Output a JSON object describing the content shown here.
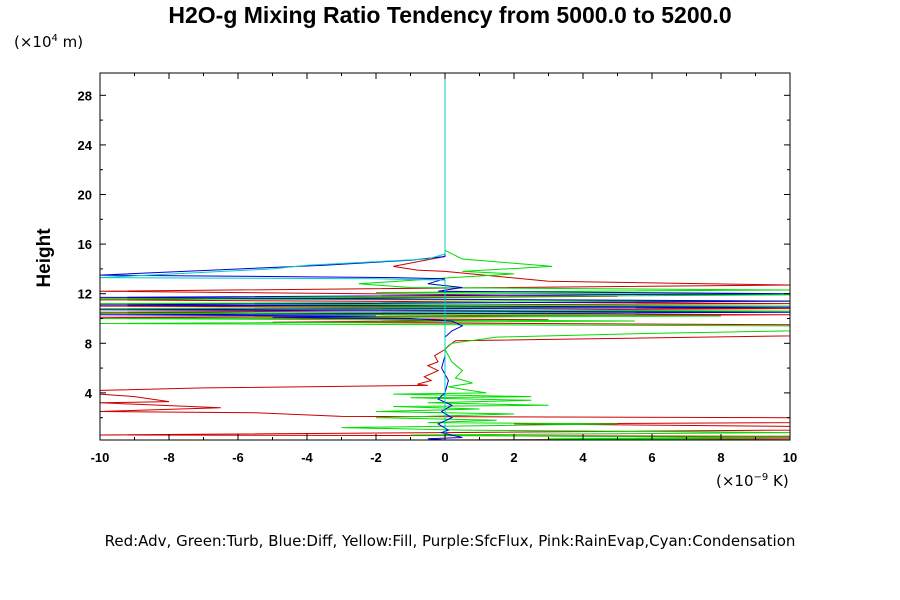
{
  "chart_data": {
    "type": "line",
    "title": "H2O-g Mixing Ratio Tendency from 5000.0 to 5200.0",
    "ylabel": "Height",
    "y_unit": {
      "prefix": "(×10",
      "exponent": "4",
      "suffix": " m)"
    },
    "x_unit": {
      "prefix": "(×10",
      "exponent": "−9",
      "suffix": " K)"
    },
    "xlim": [
      -10,
      10
    ],
    "ylim": [
      0.2,
      29.8
    ],
    "x_ticks": [
      -10,
      -8,
      -6,
      -4,
      -2,
      0,
      2,
      4,
      6,
      8,
      10
    ],
    "y_ticks": [
      4,
      8,
      12,
      16,
      20,
      24,
      28
    ],
    "legend": "Red:Adv, Green:Turb, Blue:Diff, Yellow:Fill, Purple:SfcFlux, Pink:RainEvap,Cyan:Condensation",
    "grid": false,
    "series": [
      {
        "name": "Adv",
        "color": "#cc0000",
        "points": [
          [
            0,
            29.8
          ],
          [
            0,
            16
          ],
          [
            0,
            15.0
          ],
          [
            -1.5,
            14.2
          ],
          [
            -0.8,
            13.9
          ],
          [
            0,
            13.8
          ],
          [
            3.0,
            13.0
          ],
          [
            10,
            12.7
          ],
          [
            -10,
            12.2
          ],
          [
            5.0,
            11.8
          ],
          [
            -10,
            11.5
          ],
          [
            10,
            11.2
          ],
          [
            -10,
            11.0
          ],
          [
            10,
            10.8
          ],
          [
            -10,
            10.5
          ],
          [
            10,
            10.3
          ],
          [
            -10,
            10.1
          ],
          [
            3.0,
            9.9
          ],
          [
            -5.0,
            9.7
          ],
          [
            10,
            9.5
          ],
          [
            10,
            8.6
          ],
          [
            0.3,
            8.2
          ],
          [
            0.1,
            7.8
          ],
          [
            0,
            7.5
          ],
          [
            -0.3,
            7.0
          ],
          [
            -0.2,
            6.5
          ],
          [
            -0.5,
            6.2
          ],
          [
            -0.2,
            5.8
          ],
          [
            -0.6,
            5.3
          ],
          [
            -0.4,
            5.0
          ],
          [
            -0.8,
            4.7
          ],
          [
            -0.5,
            4.6
          ],
          [
            -7.0,
            4.4
          ],
          [
            -10,
            4.2
          ],
          [
            -10,
            3.9
          ],
          [
            -9.0,
            3.7
          ],
          [
            -8.0,
            3.3
          ],
          [
            -10,
            3.2
          ],
          [
            -6.5,
            2.8
          ],
          [
            -10,
            2.5
          ],
          [
            -5.5,
            2.4
          ],
          [
            -3.0,
            2.1
          ],
          [
            10,
            2.0
          ],
          [
            10,
            1.6
          ],
          [
            2.0,
            1.5
          ],
          [
            10,
            1.3
          ],
          [
            10,
            1.0
          ],
          [
            0,
            0.8
          ],
          [
            -10,
            0.6
          ],
          [
            10,
            0.5
          ],
          [
            10,
            0.3
          ],
          [
            0,
            0.2
          ]
        ]
      },
      {
        "name": "Turb",
        "color": "#00dd00",
        "points": [
          [
            0,
            29.8
          ],
          [
            0,
            15.5
          ],
          [
            0.5,
            14.8
          ],
          [
            3.1,
            14.2
          ],
          [
            0.5,
            13.8
          ],
          [
            2.0,
            13.6
          ],
          [
            0.2,
            13.3
          ],
          [
            -2.5,
            12.8
          ],
          [
            -1.0,
            12.5
          ],
          [
            10,
            12.3
          ],
          [
            -2.0,
            12.1
          ],
          [
            10,
            11.9
          ],
          [
            -10,
            11.6
          ],
          [
            10,
            11.4
          ],
          [
            -10,
            11.2
          ],
          [
            10,
            11.0
          ],
          [
            -10,
            10.8
          ],
          [
            10,
            10.6
          ],
          [
            -10,
            10.4
          ],
          [
            8.0,
            10.2
          ],
          [
            -10,
            10.0
          ],
          [
            5.5,
            9.8
          ],
          [
            -10,
            9.6
          ],
          [
            10,
            9.4
          ],
          [
            10,
            9.0
          ],
          [
            6.0,
            8.8
          ],
          [
            1.5,
            8.5
          ],
          [
            0.2,
            8.0
          ],
          [
            0,
            7.5
          ],
          [
            0.2,
            6.5
          ],
          [
            0.5,
            5.8
          ],
          [
            0.3,
            5.2
          ],
          [
            0.8,
            4.8
          ],
          [
            0.1,
            4.5
          ],
          [
            0.5,
            4.3
          ],
          [
            1.2,
            4.0
          ],
          [
            -1.5,
            3.9
          ],
          [
            2.5,
            3.7
          ],
          [
            -1.0,
            3.6
          ],
          [
            2.5,
            3.4
          ],
          [
            -0.5,
            3.2
          ],
          [
            3.0,
            3.0
          ],
          [
            -1.5,
            2.9
          ],
          [
            1.0,
            2.7
          ],
          [
            -2.0,
            2.5
          ],
          [
            2.0,
            2.3
          ],
          [
            -2.0,
            2.0
          ],
          [
            1.5,
            1.8
          ],
          [
            -0.5,
            1.6
          ],
          [
            5.0,
            1.5
          ],
          [
            -3.0,
            1.2
          ],
          [
            0.5,
            1.0
          ],
          [
            10,
            0.8
          ],
          [
            -1.0,
            0.6
          ],
          [
            3.0,
            0.5
          ],
          [
            10,
            0.4
          ],
          [
            3.0,
            0.3
          ],
          [
            10,
            0.2
          ]
        ]
      },
      {
        "name": "Diff",
        "color": "#0000cc",
        "points": [
          [
            0,
            29.8
          ],
          [
            0,
            15.6
          ],
          [
            0,
            15.0
          ],
          [
            -1.0,
            14.7
          ],
          [
            -3.5,
            14.3
          ],
          [
            -10,
            13.5
          ],
          [
            -1.5,
            13.3
          ],
          [
            0,
            13.2
          ],
          [
            -0.5,
            12.8
          ],
          [
            0.5,
            12.5
          ],
          [
            -0.2,
            12.2
          ],
          [
            10,
            12.0
          ],
          [
            -10,
            11.7
          ],
          [
            10,
            11.4
          ],
          [
            -10,
            11.1
          ],
          [
            10,
            10.9
          ],
          [
            -10,
            10.7
          ],
          [
            10,
            10.5
          ],
          [
            -10,
            10.3
          ],
          [
            -2.0,
            10.2
          ],
          [
            -5.0,
            10.1
          ],
          [
            -1.0,
            10.0
          ],
          [
            0.2,
            9.8
          ],
          [
            0.5,
            9.4
          ],
          [
            0.2,
            9.0
          ],
          [
            0,
            8.5
          ],
          [
            0,
            7.0
          ],
          [
            -0.1,
            6.0
          ],
          [
            0.1,
            5.0
          ],
          [
            0,
            4.0
          ],
          [
            -0.2,
            3.5
          ],
          [
            0.2,
            3.0
          ],
          [
            -0.1,
            2.5
          ],
          [
            0.2,
            2.0
          ],
          [
            -0.2,
            1.5
          ],
          [
            0.1,
            1.0
          ],
          [
            -0.1,
            0.8
          ],
          [
            0.5,
            0.4
          ],
          [
            -0.5,
            0.3
          ],
          [
            0,
            0.2
          ]
        ]
      },
      {
        "name": "Condensation",
        "color": "#00cccc",
        "points": [
          [
            0,
            29.8
          ],
          [
            0,
            16
          ],
          [
            0,
            15.2
          ],
          [
            -0.5,
            14.8
          ],
          [
            -4.0,
            14.3
          ],
          [
            -5.0,
            14.0
          ],
          [
            -10,
            13.3
          ],
          [
            -2.0,
            13.2
          ],
          [
            0,
            13.1
          ],
          [
            0,
            0.2
          ]
        ]
      }
    ]
  }
}
